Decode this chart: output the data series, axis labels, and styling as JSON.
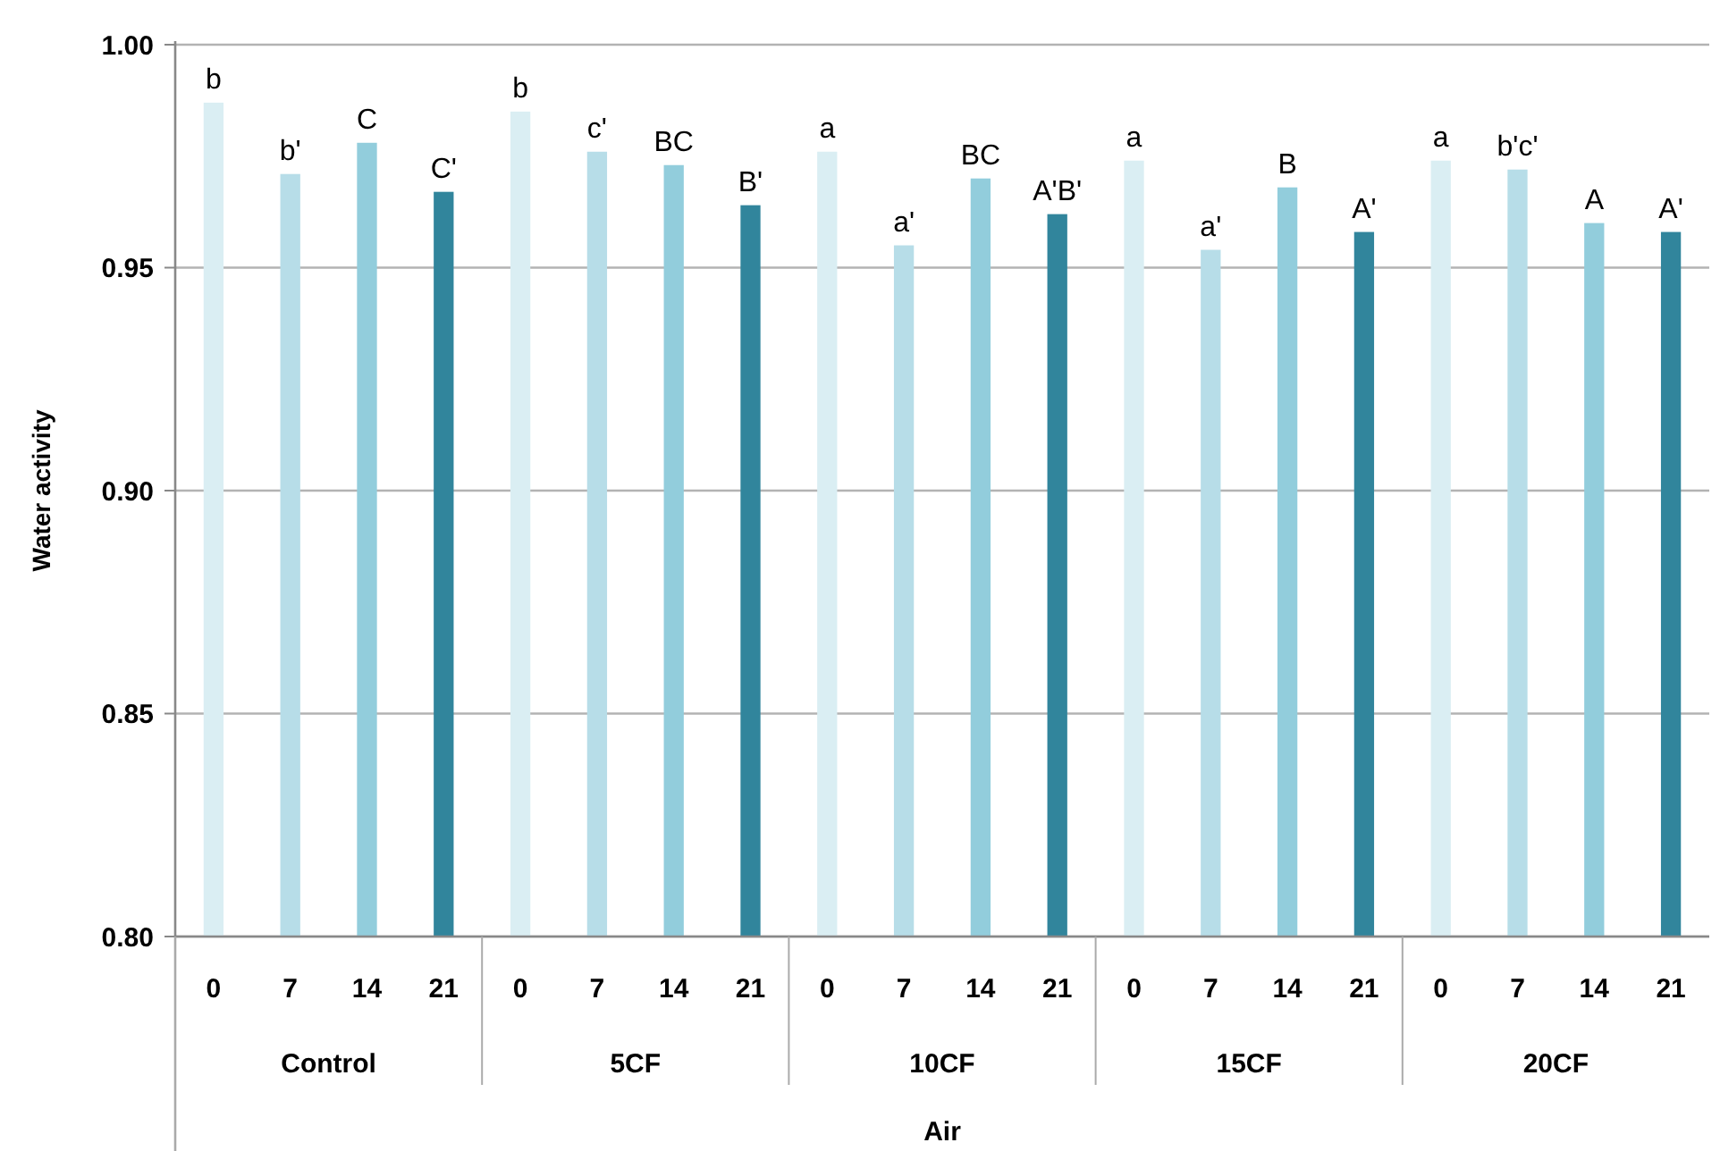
{
  "chart_data": {
    "type": "bar",
    "ylabel": "Water activity",
    "xlabel": "Air",
    "categories": [
      "0",
      "7",
      "14",
      "21",
      "0",
      "7",
      "14",
      "21",
      "0",
      "7",
      "14",
      "21",
      "0",
      "7",
      "14",
      "21",
      "0",
      "7",
      "14",
      "21"
    ],
    "values": [
      0.987,
      0.971,
      0.978,
      0.967,
      0.985,
      0.976,
      0.973,
      0.964,
      0.976,
      0.955,
      0.97,
      0.962,
      0.974,
      0.954,
      0.968,
      0.958,
      0.974,
      0.972,
      0.96,
      0.958
    ],
    "colors": [
      "#daeef3",
      "#b7dde8",
      "#92cddc",
      "#31859c",
      "#daeef3",
      "#b7dde8",
      "#92cddc",
      "#31859c",
      "#daeef3",
      "#b7dde8",
      "#92cddc",
      "#31859c",
      "#daeef3",
      "#b7dde8",
      "#92cddc",
      "#31859c",
      "#daeef3",
      "#b7dde8",
      "#92cddc",
      "#31859c"
    ],
    "value_labels": [
      "b",
      "b'",
      "C",
      "C'",
      "b",
      "c'",
      "BC",
      "B'",
      "a",
      "a'",
      "BC",
      "A'B'",
      "a",
      "a'",
      "B",
      "A'",
      "a",
      "b'c'",
      "A",
      "A'"
    ],
    "annotations": [
      "Control",
      "5CF",
      "10CF",
      "15CF",
      "20CF"
    ],
    "ylim": [
      0.8,
      1.0
    ],
    "yticks": [
      {
        "value": 0.8,
        "label": "0.80"
      },
      {
        "value": 0.85,
        "label": "0.85"
      },
      {
        "value": 0.9,
        "label": "0.90"
      },
      {
        "value": 0.95,
        "label": "0.95"
      },
      {
        "value": 1.0,
        "label": "1.00"
      }
    ],
    "grid": "y"
  }
}
